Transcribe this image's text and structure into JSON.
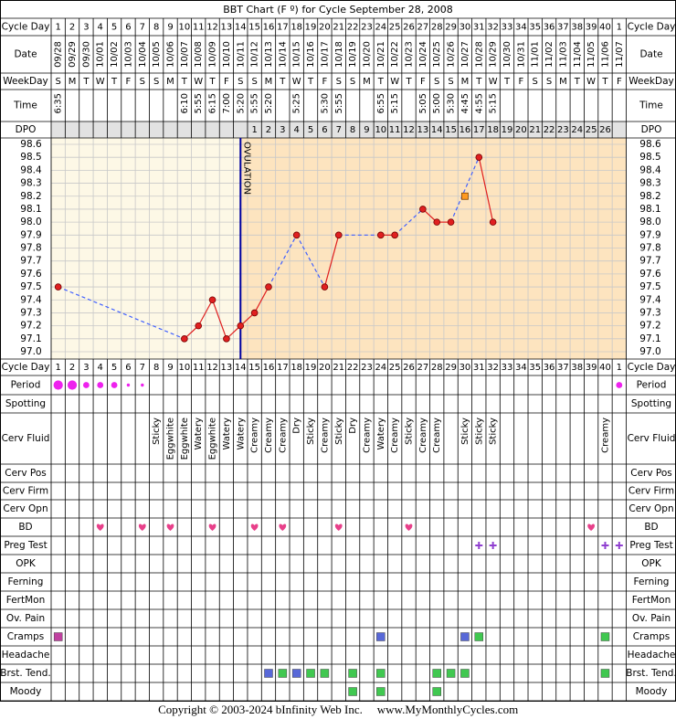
{
  "chart_data": {
    "type": "line",
    "title": "BBT Chart (F º) for Cycle September 28, 2008",
    "categories": [
      1,
      2,
      3,
      4,
      5,
      6,
      7,
      8,
      9,
      10,
      11,
      12,
      13,
      14,
      15,
      16,
      17,
      18,
      19,
      20,
      21,
      22,
      23,
      24,
      25,
      26,
      27,
      28,
      29,
      30,
      31,
      32,
      33,
      34,
      35,
      36,
      37,
      38,
      39,
      40,
      1
    ],
    "series": [
      {
        "color": "#e02020",
        "marker": "circle",
        "values": [
          97.5,
          null,
          null,
          null,
          null,
          null,
          null,
          null,
          null,
          97.1,
          97.2,
          97.4,
          97.1,
          97.2,
          97.3,
          97.5,
          null,
          97.9,
          null,
          97.5,
          97.9,
          null,
          null,
          97.9,
          97.9,
          null,
          98.1,
          98.0,
          98.0,
          null,
          98.5,
          98.0,
          null,
          null,
          null,
          null,
          null,
          null,
          null,
          null,
          null
        ]
      },
      {
        "color": "#ff9a20",
        "marker": "square",
        "values": [
          null,
          null,
          null,
          null,
          null,
          null,
          null,
          null,
          null,
          null,
          null,
          null,
          null,
          null,
          null,
          null,
          null,
          null,
          null,
          null,
          null,
          null,
          null,
          null,
          null,
          null,
          null,
          null,
          null,
          98.2,
          null,
          null,
          null,
          null,
          null,
          null,
          null,
          null,
          null,
          null,
          null
        ]
      }
    ],
    "gap_line_color": "#4060ff",
    "ylim": [
      97.0,
      98.6
    ],
    "yticks": [
      {
        "value": 97.0,
        "label": "97.0"
      },
      97.1,
      97.2,
      97.3,
      97.4,
      97.5,
      97.6,
      97.7,
      97.8,
      97.9,
      {
        "value": 98.0,
        "label": "98.0"
      },
      98.1,
      98.2,
      98.3,
      98.4,
      98.5,
      98.6
    ],
    "grid": true,
    "annotations": [
      {
        "text": "OVULATION",
        "x": 14
      }
    ]
  },
  "table": {
    "row_labels": [
      "Cycle Day",
      "Date",
      "WeekDay",
      "Time",
      "DPO",
      "Cycle Day",
      "Period",
      "Spotting",
      "Cerv Fluid",
      "Cerv Pos",
      "Cerv Firm",
      "Cerv Opn",
      "BD",
      "Preg Test",
      "OPK",
      "Ferning",
      "FertMon",
      "Ov. Pain",
      "Cramps",
      "Headache",
      "Brst. Tend.",
      "Moody"
    ],
    "dates": [
      "09/28",
      "09/29",
      "09/30",
      "10/01",
      "10/02",
      "10/03",
      "10/04",
      "10/05",
      "10/06",
      "10/07",
      "10/08",
      "10/09",
      "10/10",
      "10/11",
      "10/12",
      "10/13",
      "10/14",
      "10/15",
      "10/16",
      "10/17",
      "10/18",
      "10/19",
      "10/20",
      "10/21",
      "10/22",
      "10/23",
      "10/24",
      "10/25",
      "10/26",
      "10/27",
      "10/28",
      "10/29",
      "10/30",
      "10/31",
      "11/01",
      "11/02",
      "11/03",
      "11/04",
      "11/05",
      "11/06",
      "11/07"
    ],
    "weekdays": [
      "S",
      "M",
      "T",
      "W",
      "T",
      "F",
      "S",
      "S",
      "M",
      "T",
      "W",
      "T",
      "F",
      "S",
      "S",
      "M",
      "T",
      "W",
      "T",
      "F",
      "S",
      "S",
      "M",
      "T",
      "W",
      "T",
      "F",
      "S",
      "S",
      "M",
      "T",
      "W",
      "T",
      "F",
      "S",
      "S",
      "M",
      "T",
      "W",
      "T",
      "F"
    ],
    "times": [
      "6:35",
      null,
      null,
      null,
      null,
      null,
      null,
      null,
      null,
      "6:10",
      "5:55",
      "6:15",
      "7:00",
      "5:20",
      "5:55",
      "5:20",
      null,
      "5:25",
      null,
      "5:30",
      "5:55",
      null,
      null,
      "6:55",
      "5:15",
      null,
      "5:05",
      "5:00",
      "5:30",
      "4:45",
      "4:55",
      "5:15",
      null,
      null,
      null,
      null,
      null,
      null,
      null,
      null,
      null
    ],
    "dpo": [
      null,
      null,
      null,
      null,
      null,
      null,
      null,
      null,
      null,
      null,
      null,
      null,
      null,
      null,
      1,
      2,
      3,
      4,
      5,
      6,
      7,
      8,
      9,
      10,
      11,
      12,
      13,
      14,
      15,
      16,
      17,
      18,
      19,
      20,
      21,
      22,
      23,
      24,
      25,
      26,
      null
    ],
    "period_color": "#ee22ee",
    "period": [
      3,
      3,
      2,
      2,
      2,
      1,
      1,
      null,
      null,
      null,
      null,
      null,
      null,
      null,
      null,
      null,
      null,
      null,
      null,
      null,
      null,
      null,
      null,
      null,
      null,
      null,
      null,
      null,
      null,
      null,
      null,
      null,
      null,
      null,
      null,
      null,
      null,
      null,
      null,
      null,
      2
    ],
    "cerv_fluid": [
      null,
      null,
      null,
      null,
      null,
      null,
      null,
      "Sticky",
      "Eggwhite",
      "Eggwhite",
      "Watery",
      "Eggwhite",
      "Watery",
      "Watery",
      "Creamy",
      "Creamy",
      "Creamy",
      "Dry",
      "Sticky",
      "Creamy",
      "Sticky",
      "Dry",
      "Creamy",
      "Watery",
      "Creamy",
      "Sticky",
      "Creamy",
      "Creamy",
      null,
      "Sticky",
      "Sticky",
      "Sticky",
      null,
      null,
      null,
      null,
      null,
      null,
      null,
      "Creamy",
      null
    ],
    "bd": [
      null,
      null,
      null,
      "#e8408a",
      null,
      null,
      "#e8408a",
      null,
      "#e8408a",
      null,
      null,
      "#e8408a",
      null,
      null,
      "#e8408a",
      null,
      "#e8408a",
      null,
      null,
      null,
      "#e8408a",
      null,
      null,
      null,
      null,
      "#e8408a",
      null,
      null,
      null,
      null,
      null,
      null,
      null,
      null,
      null,
      null,
      null,
      null,
      "#e8408a",
      null,
      null
    ],
    "preg_test": [
      null,
      null,
      null,
      null,
      null,
      null,
      null,
      null,
      null,
      null,
      null,
      null,
      null,
      null,
      null,
      null,
      null,
      null,
      null,
      null,
      null,
      null,
      null,
      null,
      null,
      null,
      null,
      null,
      null,
      null,
      "#9040d0",
      "#9040d0",
      null,
      null,
      null,
      null,
      null,
      null,
      null,
      "#9040d0",
      "#9040d0"
    ],
    "cramps": [
      "#c040a0",
      null,
      null,
      null,
      null,
      null,
      null,
      null,
      null,
      null,
      null,
      null,
      null,
      null,
      null,
      null,
      null,
      null,
      null,
      null,
      null,
      null,
      null,
      "#5868d8",
      null,
      null,
      null,
      null,
      null,
      "#5868d8",
      "#40c850",
      null,
      null,
      null,
      null,
      null,
      null,
      null,
      null,
      "#40c850",
      null
    ],
    "breast_tenderness": [
      null,
      null,
      null,
      null,
      null,
      null,
      null,
      null,
      null,
      null,
      null,
      null,
      null,
      null,
      null,
      "#5868d8",
      "#40c850",
      "#5868d8",
      "#40c850",
      "#40c850",
      null,
      "#40c850",
      null,
      "#40c850",
      null,
      null,
      null,
      "#40c850",
      "#40c850",
      "#40c850",
      null,
      null,
      null,
      null,
      null,
      null,
      null,
      null,
      null,
      "#40c850",
      null
    ],
    "moody": [
      null,
      null,
      null,
      null,
      null,
      null,
      null,
      null,
      null,
      null,
      null,
      null,
      null,
      null,
      null,
      null,
      null,
      null,
      null,
      null,
      null,
      "#40c850",
      null,
      "#40c850",
      null,
      null,
      null,
      "#40c850",
      null,
      null,
      null,
      null,
      null,
      null,
      null,
      null,
      null,
      null,
      null,
      null,
      null
    ]
  },
  "footer": {
    "copyright": "Copyright © 2003-2024 bInfinity Web Inc.",
    "url": "www.MyMonthlyCycles.com"
  }
}
